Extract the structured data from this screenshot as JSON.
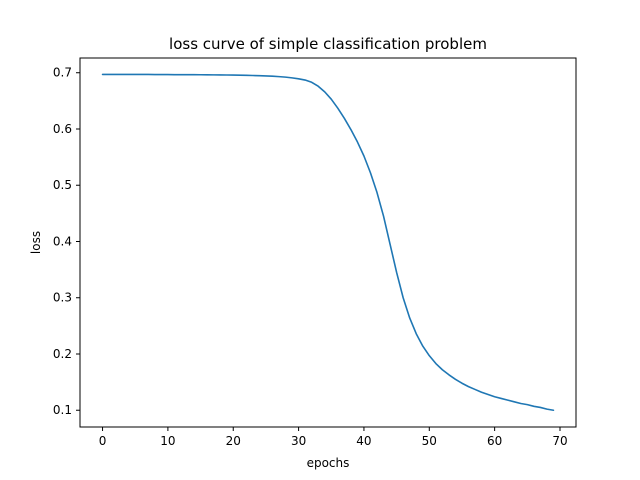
{
  "chart_data": {
    "type": "line",
    "title": "loss curve of simple classification problem",
    "xlabel": "epochs",
    "ylabel": "loss",
    "xlim": [
      -3.45,
      72.45
    ],
    "ylim": [
      0.0702,
      0.7262
    ],
    "xticks": [
      0,
      10,
      20,
      30,
      40,
      50,
      60,
      70
    ],
    "yticks": [
      0.1,
      0.2,
      0.3,
      0.4,
      0.5,
      0.6,
      0.7
    ],
    "xtick_labels": [
      "0",
      "10",
      "20",
      "30",
      "40",
      "50",
      "60",
      "70"
    ],
    "ytick_labels": [
      "0.1",
      "0.2",
      "0.3",
      "0.4",
      "0.5",
      "0.6",
      "0.7"
    ],
    "grid": false,
    "line_color": "#1f77b4",
    "series": [
      {
        "x": [
          0,
          1,
          2,
          3,
          4,
          5,
          6,
          7,
          8,
          9,
          10,
          11,
          12,
          13,
          14,
          15,
          16,
          17,
          18,
          19,
          20,
          21,
          22,
          23,
          24,
          25,
          26,
          27,
          28,
          29,
          30,
          31,
          32,
          33,
          34,
          35,
          36,
          37,
          38,
          39,
          40,
          41,
          42,
          43,
          44,
          45,
          46,
          47,
          48,
          49,
          50,
          51,
          52,
          53,
          54,
          55,
          56,
          57,
          58,
          59,
          60,
          61,
          62,
          63,
          64,
          65,
          66,
          67,
          68,
          69
        ],
        "values": [
          0.697,
          0.697,
          0.697,
          0.697,
          0.697,
          0.697,
          0.6969,
          0.6969,
          0.6968,
          0.6968,
          0.6967,
          0.6966,
          0.6966,
          0.6965,
          0.6965,
          0.6964,
          0.6963,
          0.6962,
          0.6961,
          0.696,
          0.6958,
          0.6956,
          0.6954,
          0.6951,
          0.6948,
          0.6944,
          0.6938,
          0.6931,
          0.6922,
          0.6909,
          0.6892,
          0.687,
          0.683,
          0.676,
          0.666,
          0.653,
          0.637,
          0.619,
          0.599,
          0.577,
          0.552,
          0.522,
          0.487,
          0.445,
          0.395,
          0.345,
          0.3,
          0.264,
          0.236,
          0.214,
          0.197,
          0.183,
          0.172,
          0.163,
          0.155,
          0.148,
          0.142,
          0.137,
          0.132,
          0.128,
          0.124,
          0.121,
          0.118,
          0.115,
          0.112,
          0.11,
          0.107,
          0.105,
          0.102,
          0.1
        ]
      }
    ]
  }
}
